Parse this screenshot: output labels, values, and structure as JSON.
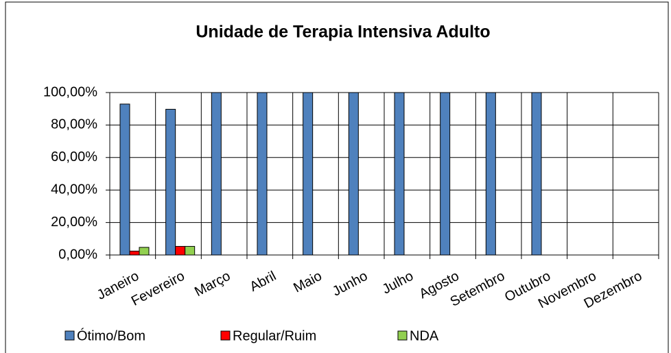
{
  "chart_data": {
    "type": "bar",
    "title": "Unidade de Terapia Intensiva Adulto",
    "categories": [
      "Janeiro",
      "Fevereiro",
      "Março",
      "Abril",
      "Maio",
      "Junho",
      "Julho",
      "Agosto",
      "Setembro",
      "Outubro",
      "Novembro",
      "Dezembro"
    ],
    "series": [
      {
        "name": "Ótimo/Bom",
        "color": "#4f81bd",
        "values": [
          92.9,
          89.7,
          100,
          100,
          100,
          100,
          100,
          100,
          100,
          100,
          null,
          null
        ]
      },
      {
        "name": "Regular/Ruim",
        "color": "#ff0000",
        "values": [
          2.4,
          5.3,
          0,
          0,
          0,
          0,
          0,
          0,
          0,
          0,
          null,
          null
        ]
      },
      {
        "name": "NDA",
        "color": "#92d050",
        "values": [
          4.7,
          5.3,
          0,
          0,
          0,
          0,
          0,
          0,
          0,
          0,
          null,
          null
        ]
      }
    ],
    "ylim": [
      0,
      100
    ],
    "yticks": [
      {
        "value": 0,
        "label": "0,00%"
      },
      {
        "value": 20,
        "label": "20,00%"
      },
      {
        "value": 40,
        "label": "40,00%"
      },
      {
        "value": 60,
        "label": "60,00%"
      },
      {
        "value": 80,
        "label": "80,00%"
      },
      {
        "value": 100,
        "label": "100,00%"
      }
    ],
    "grid": true,
    "legend": "bottom"
  }
}
